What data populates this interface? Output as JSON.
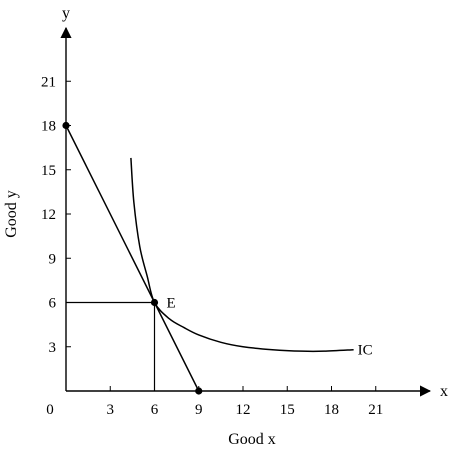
{
  "chart_data": {
    "type": "line",
    "title": "",
    "xlabel": "Good x",
    "ylabel": "Good y",
    "x_axis_name": "x",
    "y_axis_name": "y",
    "origin_label": "0",
    "xlim": [
      0,
      24
    ],
    "ylim": [
      0,
      24
    ],
    "x_ticks": [
      3,
      6,
      9,
      12,
      15,
      18,
      21
    ],
    "y_ticks": [
      3,
      6,
      9,
      12,
      15,
      18,
      21
    ],
    "grid": false,
    "series": [
      {
        "kind": "budget-line",
        "points": [
          [
            0,
            18
          ],
          [
            9,
            0
          ]
        ]
      },
      {
        "name": "IC",
        "kind": "indifference-curve",
        "points": [
          [
            4.4,
            15.8
          ],
          [
            4.6,
            12.8
          ],
          [
            5.0,
            9.8
          ],
          [
            5.5,
            7.8
          ],
          [
            6,
            6
          ],
          [
            7,
            4.9
          ],
          [
            8,
            4.3
          ],
          [
            9,
            3.8
          ],
          [
            10.5,
            3.3
          ],
          [
            12,
            3.0
          ],
          [
            14,
            2.8
          ],
          [
            16,
            2.7
          ],
          [
            17.5,
            2.7
          ],
          [
            19.5,
            2.8
          ]
        ]
      }
    ],
    "points": [
      {
        "x": 0,
        "y": 18,
        "label": ""
      },
      {
        "x": 6,
        "y": 6,
        "label": "E"
      },
      {
        "x": 9,
        "y": 0,
        "label": ""
      }
    ],
    "guides": [
      {
        "from": [
          0,
          6
        ],
        "to": [
          6,
          6
        ]
      },
      {
        "from": [
          6,
          6
        ],
        "to": [
          6,
          0
        ]
      }
    ],
    "annotations": [
      {
        "text": "E",
        "anchor": [
          6,
          6
        ]
      },
      {
        "text": "IC",
        "anchor": [
          19.5,
          2.8
        ]
      }
    ]
  }
}
